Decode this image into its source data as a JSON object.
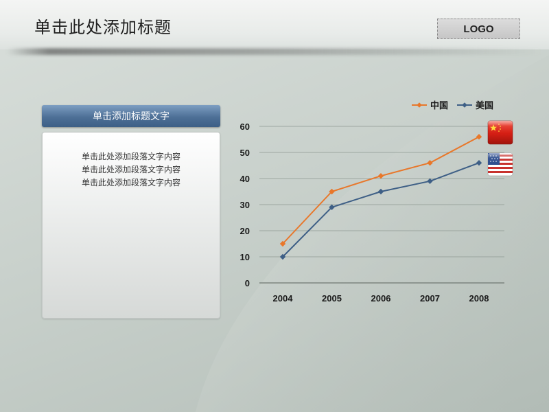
{
  "header": {
    "title": "单击此处添加标题",
    "logo": "LOGO"
  },
  "panel": {
    "title": "单击添加标题文字",
    "lines": [
      "单击此处添加段落文字内容",
      "单击此处添加段落文字内容",
      "单击此处添加段落文字内容"
    ]
  },
  "chart_data": {
    "type": "line",
    "title": "",
    "xlabel": "",
    "ylabel": "",
    "categories": [
      "2004",
      "2005",
      "2006",
      "2007",
      "2008"
    ],
    "ylim": [
      0,
      60
    ],
    "yticks": [
      0,
      10,
      20,
      30,
      40,
      50,
      60
    ],
    "grid": true,
    "legend_position": "top-right",
    "series": [
      {
        "name": "中国",
        "color": "#e8772a",
        "marker": "diamond",
        "flag_icon": "china-flag-icon",
        "values": [
          15,
          35,
          41,
          46,
          56
        ]
      },
      {
        "name": "美国",
        "color": "#3e5f86",
        "marker": "diamond",
        "flag_icon": "usa-flag-icon",
        "values": [
          10,
          29,
          35,
          39,
          46
        ]
      }
    ]
  }
}
